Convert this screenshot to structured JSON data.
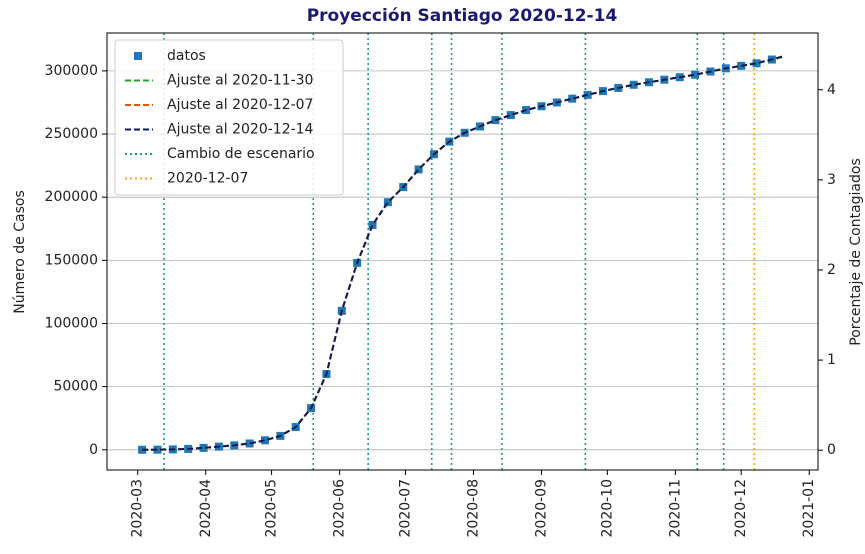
{
  "chart_data": {
    "type": "line",
    "title": "Proyección Santiago 2020-12-14",
    "ylabel": "Número de Casos",
    "y2label": "Porcentaje de Contagiados",
    "x": [
      "2020-03-03",
      "2020-03-10",
      "2020-03-17",
      "2020-03-24",
      "2020-03-31",
      "2020-04-07",
      "2020-04-14",
      "2020-04-21",
      "2020-04-28",
      "2020-05-05",
      "2020-05-12",
      "2020-05-19",
      "2020-05-26",
      "2020-06-02",
      "2020-06-09",
      "2020-06-16",
      "2020-06-23",
      "2020-06-30",
      "2020-07-07",
      "2020-07-14",
      "2020-07-21",
      "2020-07-28",
      "2020-08-04",
      "2020-08-11",
      "2020-08-18",
      "2020-08-25",
      "2020-09-01",
      "2020-09-08",
      "2020-09-15",
      "2020-09-22",
      "2020-09-29",
      "2020-10-06",
      "2020-10-13",
      "2020-10-20",
      "2020-10-27",
      "2020-11-03",
      "2020-11-10",
      "2020-11-17",
      "2020-11-24",
      "2020-12-01",
      "2020-12-08",
      "2020-12-15",
      "2020-12-20"
    ],
    "series": [
      {
        "name": "datos",
        "color": "#1f77b4",
        "style": "marker",
        "values": [
          0,
          100,
          300,
          700,
          1500,
          2500,
          3500,
          5000,
          7500,
          11000,
          18000,
          33000,
          60000,
          110000,
          148000,
          178000,
          196000,
          208000,
          222000,
          234000,
          244000,
          251000,
          256000,
          261000,
          265000,
          269000,
          272000,
          275000,
          278000,
          281000,
          284000,
          286500,
          289000,
          291000,
          293000,
          295000,
          297000,
          299500,
          302000,
          304000,
          306000,
          309000,
          null
        ]
      },
      {
        "name": "Ajuste al 2020-11-30",
        "color": "#2ca02c",
        "style": "dashed",
        "values": [
          0,
          100,
          300,
          700,
          1500,
          2500,
          3500,
          5000,
          7500,
          11000,
          18000,
          33000,
          60000,
          110000,
          148000,
          178000,
          196000,
          208000,
          222000,
          234000,
          244000,
          251000,
          256000,
          261000,
          265000,
          269000,
          272000,
          275000,
          278000,
          281000,
          284000,
          286500,
          289000,
          291000,
          293000,
          295000,
          297000,
          299500,
          302000,
          304000,
          306500,
          309000,
          311000
        ]
      },
      {
        "name": "Ajuste al 2020-12-07",
        "color": "#e6550d",
        "style": "dashed",
        "values": [
          0,
          100,
          300,
          700,
          1500,
          2500,
          3500,
          5000,
          7500,
          11000,
          18000,
          33000,
          60000,
          110000,
          148000,
          178000,
          196000,
          208000,
          222000,
          234000,
          244000,
          251000,
          256000,
          261000,
          265000,
          269000,
          272000,
          275000,
          278000,
          281000,
          284000,
          286500,
          289000,
          291000,
          293000,
          295000,
          297000,
          299500,
          302000,
          304000,
          306000,
          309000,
          311500
        ]
      },
      {
        "name": "Ajuste al 2020-12-14",
        "color": "#0d1a5c",
        "style": "dashed",
        "values": [
          0,
          100,
          300,
          700,
          1500,
          2500,
          3500,
          5000,
          7500,
          11000,
          18000,
          33000,
          60000,
          110000,
          148000,
          178000,
          196000,
          208000,
          222000,
          234000,
          244000,
          251000,
          256000,
          261000,
          265000,
          269000,
          272000,
          275000,
          278000,
          281000,
          284000,
          286500,
          289000,
          291000,
          293000,
          295000,
          297000,
          299500,
          302000,
          304000,
          306000,
          309000,
          311500
        ]
      }
    ],
    "scenario_changes": {
      "name": "Cambio de escenario",
      "color": "#1a9a9a",
      "x": [
        "2020-03-13",
        "2020-05-20",
        "2020-06-14",
        "2020-07-13",
        "2020-07-22",
        "2020-08-14",
        "2020-09-21",
        "2020-11-11",
        "2020-11-23"
      ]
    },
    "reference_line": {
      "name": "2020-12-07",
      "color": "#ff9f1a",
      "x": "2020-12-07"
    },
    "xlim": [
      "2020-02-16",
      "2021-01-05"
    ],
    "xticks": [
      "2020-03",
      "2020-04",
      "2020-05",
      "2020-06",
      "2020-07",
      "2020-08",
      "2020-09",
      "2020-10",
      "2020-11",
      "2020-12",
      "2021-01"
    ],
    "ylim": [
      -16000,
      330000
    ],
    "yticks": [
      0,
      50000,
      100000,
      150000,
      200000,
      250000,
      300000
    ],
    "y2lim": [
      -0.22,
      4.63
    ],
    "y2ticks": [
      0,
      1,
      2,
      3,
      4
    ],
    "grid": true,
    "legend": "upper left"
  }
}
